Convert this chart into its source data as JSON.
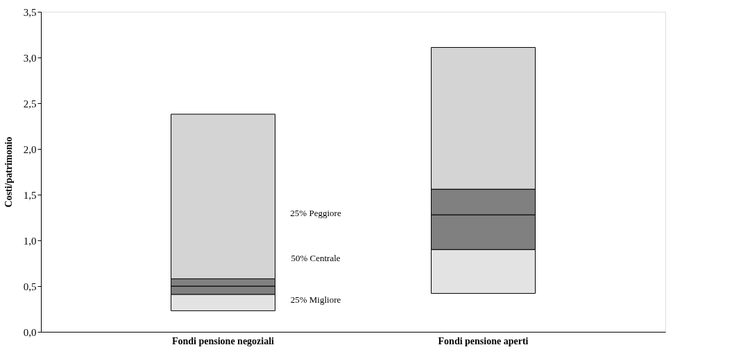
{
  "chart_data": {
    "type": "bar",
    "ylabel": "Costi/patrimonio",
    "categories": [
      "Fondi pensione negoziali",
      "Fondi pensione aperti"
    ],
    "series": [
      {
        "color": "#e3e3e3",
        "base": [
          0.23,
          0.42
        ],
        "values": [
          0.18,
          0.48
        ]
      },
      {
        "color": "#808080",
        "base": [
          0.41,
          0.9
        ],
        "values": [
          0.09,
          0.38
        ]
      },
      {
        "color": "#808080",
        "base": [
          0.5,
          1.28
        ],
        "values": [
          0.08,
          0.28
        ]
      },
      {
        "color": "#d4d4d4",
        "base": [
          0.58,
          1.56
        ],
        "values": [
          1.8,
          1.55
        ]
      }
    ],
    "ylim": [
      0,
      3.5
    ],
    "yticks": [
      {
        "value": 0,
        "label": "0,0"
      },
      {
        "value": 0.5,
        "label": "0,5"
      },
      {
        "value": 1,
        "label": "1,0"
      },
      {
        "value": 1.5,
        "label": "1,5"
      },
      {
        "value": 2,
        "label": "2,0"
      },
      {
        "value": 2.5,
        "label": "2,5"
      },
      {
        "value": 3,
        "label": "3,0"
      },
      {
        "value": 3.5,
        "label": "3,5"
      }
    ],
    "annotations": [
      "25% Peggiore",
      "50% Centrale",
      "25% Migliore"
    ],
    "grid": false,
    "legend": false
  }
}
